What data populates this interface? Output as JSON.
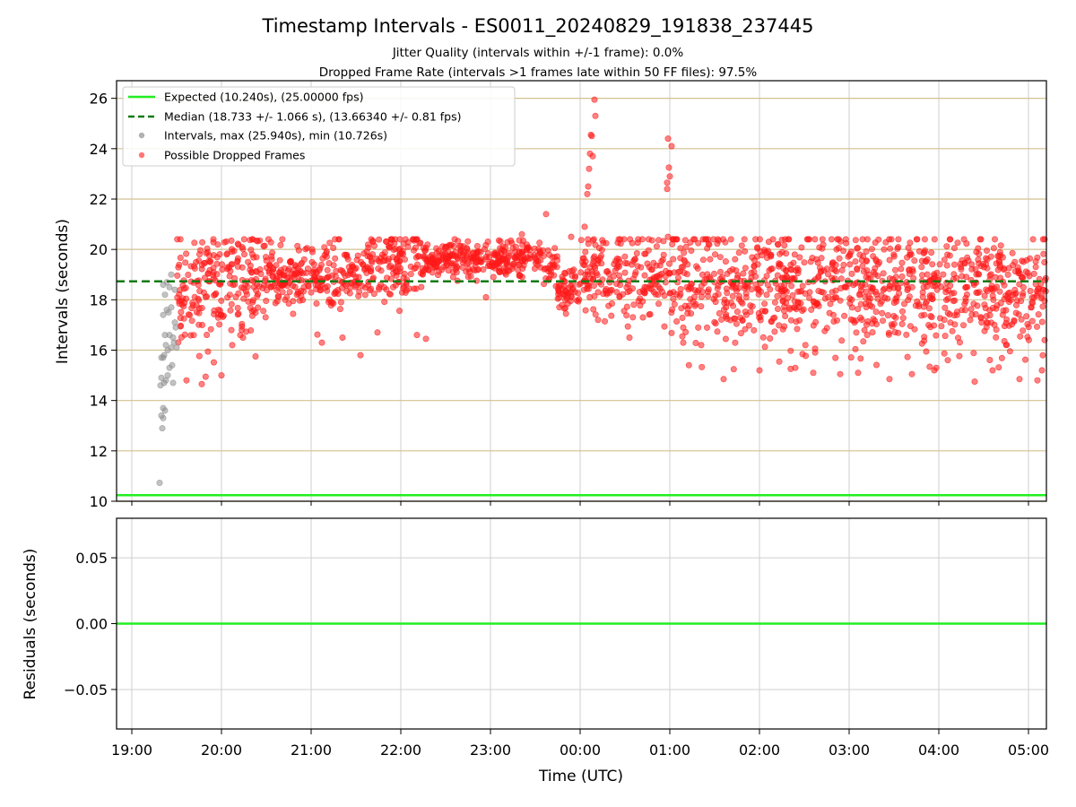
{
  "chart_data": {
    "title": "Timestamp Intervals - ES0011_20240829_191838_237445",
    "subtitle_1": "Jitter Quality (intervals within +/-1 frame): 0.0%",
    "subtitle_2": "Dropped Frame Rate (intervals >1 frames late within 50 FF files): 97.5%",
    "xlabel": "Time (UTC)",
    "x_ticks": [
      "19:00",
      "20:00",
      "21:00",
      "22:00",
      "23:00",
      "00:00",
      "01:00",
      "02:00",
      "03:00",
      "04:00",
      "05:00"
    ],
    "x_range_hours": [
      18.83,
      29.2
    ],
    "colors": {
      "expected": "#22ee22",
      "median": "#117a11",
      "intervals": "#909090",
      "dropped": "#ff1a1a",
      "grid_main": "#d2c190",
      "grid": "#cfcfcf"
    },
    "panels": [
      {
        "type": "scatter",
        "ylabel": "Intervals (seconds)",
        "ylim": [
          10.0,
          26.7
        ],
        "y_ticks": [
          10,
          12,
          14,
          16,
          18,
          20,
          22,
          24,
          26
        ],
        "expected_value": 10.24,
        "median_value": 18.733,
        "legend_position": "upper-left",
        "legend": [
          "Expected (10.240s), (25.00000 fps)",
          "Median (18.733 +/- 1.066 s), (13.66340 +/- 0.81 fps)",
          "Intervals, max (25.940s), min (10.726s)",
          "Possible Dropped Frames"
        ],
        "gray_points": [
          [
            19.31,
            10.73
          ],
          [
            19.34,
            12.9
          ],
          [
            19.35,
            13.3
          ],
          [
            19.33,
            13.4
          ],
          [
            19.37,
            13.6
          ],
          [
            19.35,
            13.7
          ],
          [
            19.32,
            14.6
          ],
          [
            19.36,
            14.7
          ],
          [
            19.33,
            14.9
          ],
          [
            19.38,
            14.8
          ],
          [
            19.4,
            15.0
          ],
          [
            19.33,
            15.7
          ],
          [
            19.36,
            15.8
          ],
          [
            19.35,
            15.7
          ],
          [
            19.4,
            16.0
          ],
          [
            19.38,
            16.2
          ],
          [
            19.44,
            16.1
          ],
          [
            19.37,
            16.6
          ],
          [
            19.42,
            16.6
          ],
          [
            19.47,
            16.3
          ],
          [
            19.35,
            17.4
          ],
          [
            19.41,
            17.5
          ],
          [
            19.46,
            16.5
          ],
          [
            19.39,
            17.6
          ],
          [
            19.44,
            17.7
          ],
          [
            19.37,
            18.2
          ],
          [
            19.48,
            17.1
          ],
          [
            19.42,
            18.5
          ],
          [
            19.35,
            18.6
          ],
          [
            19.39,
            18.7
          ],
          [
            19.44,
            19.0
          ],
          [
            19.48,
            18.4
          ],
          [
            19.46,
            14.7
          ],
          [
            19.42,
            15.3
          ],
          [
            19.45,
            15.4
          ],
          [
            19.49,
            16.9
          ],
          [
            19.5,
            16.1
          ]
        ],
        "dropped_points": [
          [
            20.0,
            15.0
          ],
          [
            19.78,
            14.65
          ],
          [
            20.38,
            15.75
          ],
          [
            21.55,
            15.8
          ],
          [
            22.18,
            16.6
          ],
          [
            22.28,
            16.45
          ],
          [
            21.35,
            16.5
          ],
          [
            21.07,
            16.62
          ],
          [
            21.12,
            16.3
          ],
          [
            20.24,
            16.5
          ],
          [
            20.12,
            16.2
          ],
          [
            21.74,
            16.7
          ],
          [
            22.95,
            18.1
          ],
          [
            22.6,
            20.4
          ],
          [
            23.62,
            21.4
          ],
          [
            23.35,
            20.6
          ],
          [
            23.9,
            20.5
          ],
          [
            24.05,
            20.9
          ],
          [
            24.16,
            25.95
          ],
          [
            24.17,
            25.3
          ],
          [
            24.12,
            24.55
          ],
          [
            24.11,
            23.8
          ],
          [
            24.1,
            23.2
          ],
          [
            24.09,
            22.5
          ],
          [
            24.08,
            22.2
          ],
          [
            24.13,
            24.5
          ],
          [
            24.14,
            23.7
          ],
          [
            24.98,
            24.4
          ],
          [
            25.02,
            24.1
          ],
          [
            24.99,
            23.25
          ],
          [
            24.97,
            22.65
          ],
          [
            25.0,
            22.9
          ],
          [
            24.97,
            22.4
          ],
          [
            24.98,
            20.5
          ],
          [
            24.2,
            18.3
          ],
          [
            24.2,
            17.2
          ],
          [
            24.55,
            16.5
          ],
          [
            24.7,
            17.3
          ],
          [
            25.15,
            16.3
          ],
          [
            25.35,
            16.2
          ],
          [
            25.6,
            14.85
          ],
          [
            26.0,
            15.2
          ],
          [
            26.4,
            15.3
          ],
          [
            26.6,
            15.1
          ],
          [
            26.9,
            15.05
          ],
          [
            27.1,
            15.1
          ],
          [
            27.45,
            14.85
          ],
          [
            27.7,
            15.05
          ],
          [
            27.95,
            15.2
          ],
          [
            28.1,
            15.6
          ],
          [
            28.4,
            14.75
          ],
          [
            28.6,
            15.2
          ],
          [
            28.9,
            14.85
          ],
          [
            29.1,
            14.8
          ],
          [
            29.15,
            15.2
          ],
          [
            29.18,
            16.4
          ],
          [
            29.16,
            18.4
          ]
        ]
      },
      {
        "type": "line",
        "ylabel": "Residuals (seconds)",
        "ylim": [
          -0.08,
          0.08
        ],
        "y_ticks": [
          "0.05",
          "0.00",
          "−0.05"
        ],
        "y_tick_values": [
          0.05,
          0.0,
          -0.05
        ],
        "line_value": 0.0
      }
    ]
  }
}
